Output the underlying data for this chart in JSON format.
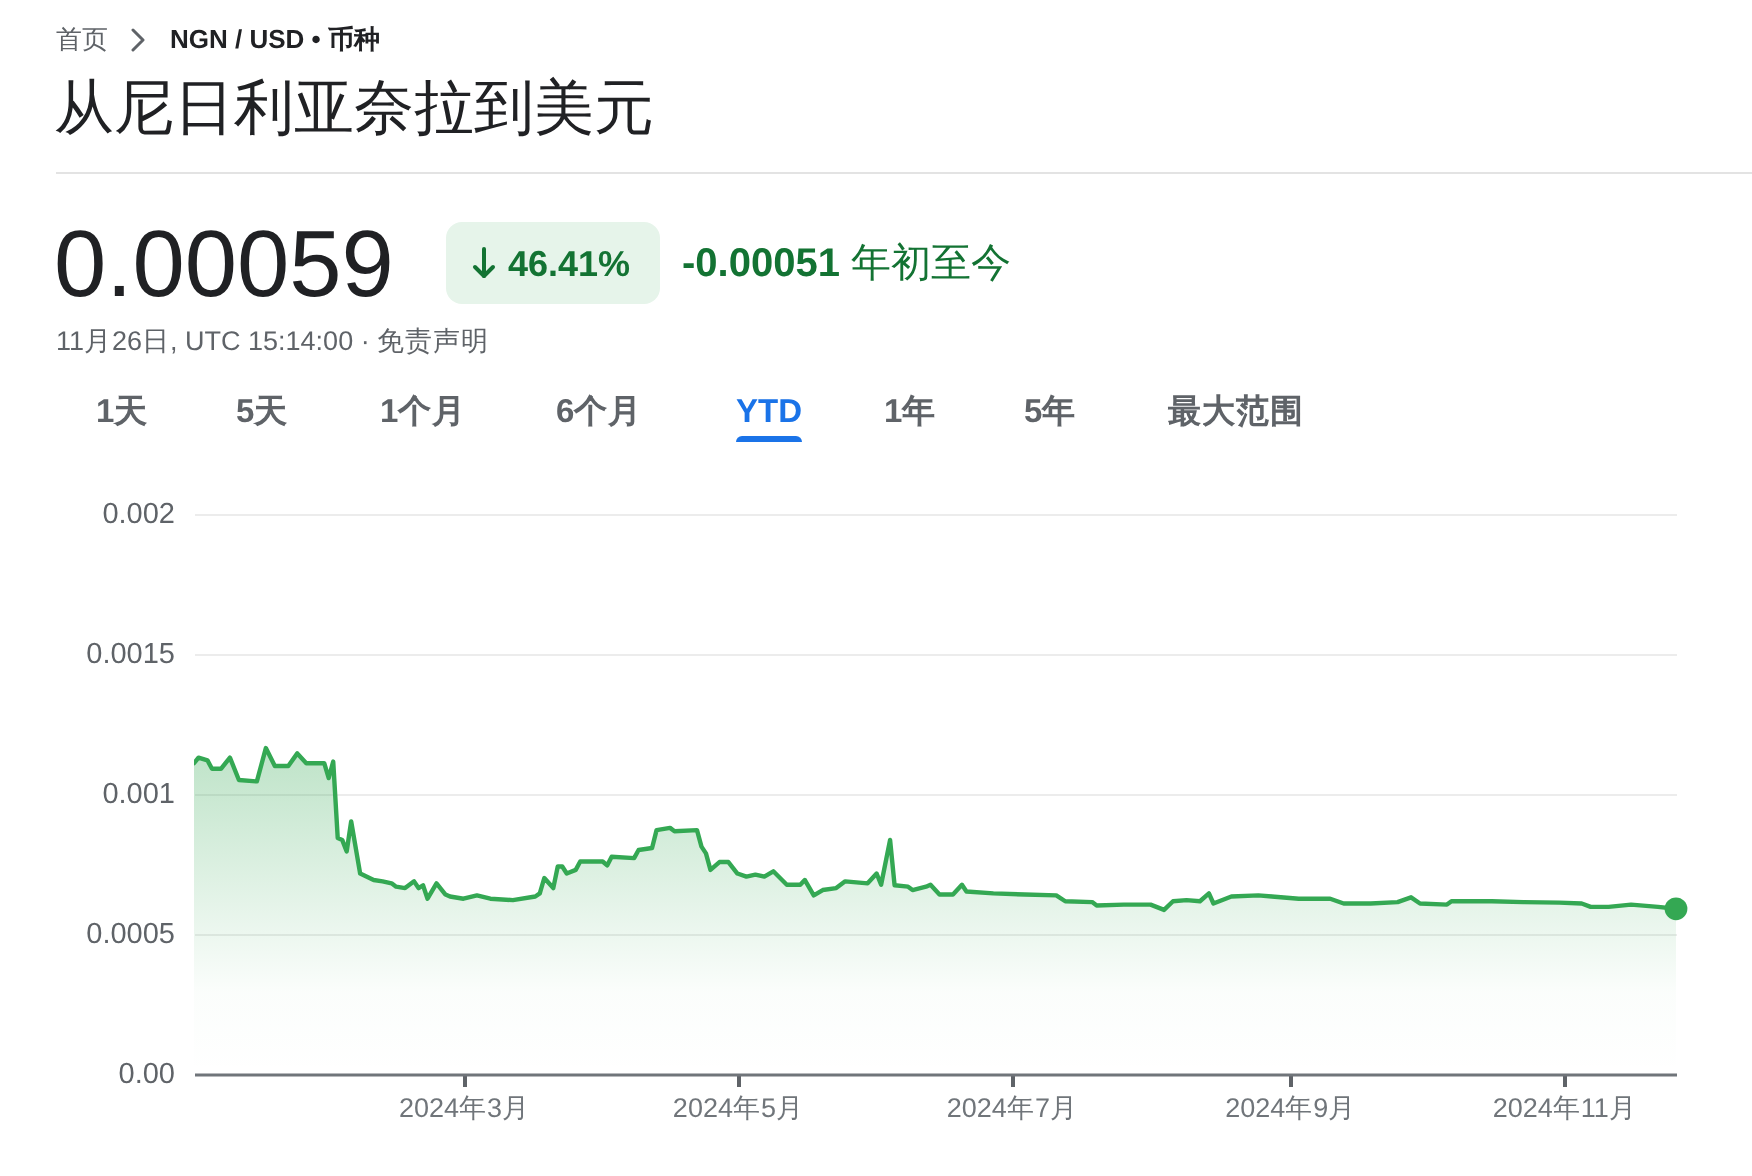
{
  "chart_data": {
    "type": "area",
    "title": "从尼日利亚奈拉到美元",
    "subtitle": "11月26日, UTC 15:14:00 · 免责声明",
    "annotations": [
      "首页",
      "NGN / USD • 币种",
      "0.00059",
      "46.41%",
      "-0.00051 年初至今",
      "1天",
      "5天",
      "1个月",
      "6个月",
      "YTD",
      "1年",
      "5年",
      "最大范围"
    ],
    "x": [
      "2024-01-01",
      "2024-01-02",
      "2024-01-04",
      "2024-01-05",
      "2024-01-07",
      "2024-01-09",
      "2024-01-11",
      "2024-01-15",
      "2024-01-17",
      "2024-01-19",
      "2024-01-22",
      "2024-01-24",
      "2024-01-26",
      "2024-01-30",
      "2024-01-31",
      "2024-02-01",
      "2024-02-02",
      "2024-02-03",
      "2024-02-04",
      "2024-02-05",
      "2024-02-07",
      "2024-02-10",
      "2024-02-12",
      "2024-02-14",
      "2024-02-15",
      "2024-02-17",
      "2024-02-19",
      "2024-02-20",
      "2024-02-21",
      "2024-02-22",
      "2024-02-24",
      "2024-02-26",
      "2024-02-27",
      "2024-03-01",
      "2024-03-04",
      "2024-03-07",
      "2024-03-12",
      "2024-03-17",
      "2024-03-18",
      "2024-03-19",
      "2024-03-21",
      "2024-03-22",
      "2024-03-23",
      "2024-03-24",
      "2024-03-26",
      "2024-03-27",
      "2024-04-01",
      "2024-04-02",
      "2024-04-03",
      "2024-04-08",
      "2024-04-09",
      "2024-04-12",
      "2024-04-13",
      "2024-04-16",
      "2024-04-17",
      "2024-04-22",
      "2024-04-23",
      "2024-04-24",
      "2024-04-25",
      "2024-04-27",
      "2024-04-29",
      "2024-05-01",
      "2024-05-03",
      "2024-05-05",
      "2024-05-07",
      "2024-05-09",
      "2024-05-12",
      "2024-05-15",
      "2024-05-16",
      "2024-05-18",
      "2024-05-20",
      "2024-05-23",
      "2024-05-25",
      "2024-05-30",
      "2024-06-01",
      "2024-06-02",
      "2024-06-04",
      "2024-06-05",
      "2024-06-08",
      "2024-06-09",
      "2024-06-12",
      "2024-06-13",
      "2024-06-15",
      "2024-06-18",
      "2024-06-20",
      "2024-06-21",
      "2024-06-27",
      "2024-07-04",
      "2024-07-11",
      "2024-07-13",
      "2024-07-19",
      "2024-07-20",
      "2024-07-26",
      "2024-08-01",
      "2024-08-04",
      "2024-08-06",
      "2024-08-09",
      "2024-08-12",
      "2024-08-14",
      "2024-08-15",
      "2024-08-19",
      "2024-08-25",
      "2024-08-28",
      "2024-09-03",
      "2024-09-10",
      "2024-09-13",
      "2024-09-19",
      "2024-09-25",
      "2024-09-28",
      "2024-09-30",
      "2024-10-06",
      "2024-10-07",
      "2024-10-16",
      "2024-10-23",
      "2024-10-31",
      "2024-11-05",
      "2024-11-07",
      "2024-11-11",
      "2024-11-16",
      "2024-11-22",
      "2024-11-26"
    ],
    "series": [
      {
        "color": "#34a853",
        "values": [
          0.00111,
          0.00113,
          0.00112,
          0.00109,
          0.00109,
          0.00113,
          0.00105,
          0.001045,
          0.001164,
          0.0011,
          0.0011,
          0.001145,
          0.00111,
          0.00111,
          0.001057,
          0.001116,
          0.000843,
          0.000836,
          0.000795,
          0.000902,
          0.000716,
          0.000693,
          0.000688,
          0.000681,
          0.000669,
          0.000664,
          0.000688,
          0.000664,
          0.000674,
          0.000626,
          0.000681,
          0.000641,
          0.000634,
          0.000626,
          0.000638,
          0.000626,
          0.000621,
          0.000634,
          0.000645,
          0.0007,
          0.000664,
          0.000741,
          0.000741,
          0.000716,
          0.000729,
          0.000759,
          0.000759,
          0.000745,
          0.000776,
          0.000771,
          0.0008,
          0.000807,
          0.000871,
          0.000879,
          0.000867,
          0.000871,
          0.000812,
          0.000788,
          0.000729,
          0.000757,
          0.000757,
          0.000716,
          0.000705,
          0.000712,
          0.000705,
          0.000724,
          0.000676,
          0.000676,
          0.000693,
          0.000638,
          0.000657,
          0.000664,
          0.000688,
          0.000681,
          0.000716,
          0.000676,
          0.000836,
          0.000674,
          0.000669,
          0.000657,
          0.000669,
          0.000676,
          0.000641,
          0.000641,
          0.000676,
          0.000652,
          0.000645,
          0.000641,
          0.000638,
          0.000617,
          0.000614,
          0.000602,
          0.000605,
          0.000605,
          0.000586,
          0.000617,
          0.000621,
          0.000617,
          0.000645,
          0.000609,
          0.000634,
          0.000638,
          0.000634,
          0.000626,
          0.000626,
          0.000609,
          0.000609,
          0.000614,
          0.000631,
          0.000609,
          0.000605,
          0.000617,
          0.000617,
          0.000614,
          0.000612,
          0.000609,
          0.000597,
          0.000597,
          0.000605,
          0.000597,
          0.00059
        ]
      },
      {
        "type": "scatter",
        "color": "#34a853",
        "x": [
          "2024-11-26"
        ],
        "values": [
          0.00059
        ]
      }
    ],
    "xlim": [
      "2024-01-01",
      "2024-11-26"
    ],
    "xticks": [
      {
        "value": "2024-03-01",
        "label": "2024年3月"
      },
      {
        "value": "2024-05-01",
        "label": "2024年5月"
      },
      {
        "value": "2024-07-01",
        "label": "2024年7月"
      },
      {
        "value": "2024-09-01",
        "label": "2024年9月"
      },
      {
        "value": "2024-11-01",
        "label": "2024年11月"
      }
    ],
    "ylim": [
      0,
      0.002
    ],
    "yticks": [
      {
        "value": 0,
        "label": "0.00"
      },
      0.0005,
      0.001,
      0.0015,
      0.002
    ],
    "grid": "y"
  }
}
